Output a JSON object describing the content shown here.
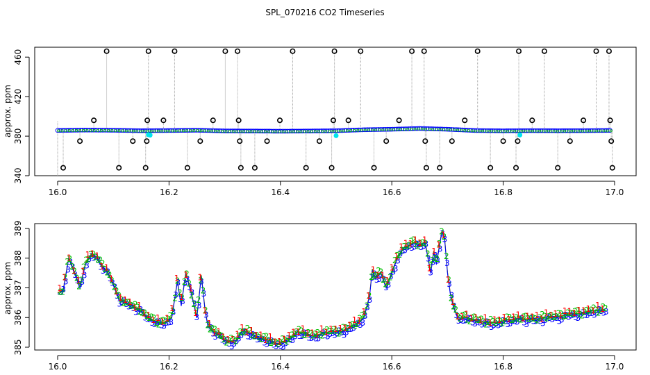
{
  "title": "SPL_070216  CO2 Timeseries",
  "colors": {
    "series_1": "#ff0000",
    "series_2": "#00c000",
    "series_3": "#0000ff",
    "cyan": "#00e5ee",
    "gray": "#a0a0a0",
    "black": "#000000"
  },
  "chart_data": [
    {
      "type": "scatter",
      "panel": "top",
      "ylabel": "approx. ppm",
      "xlim": [
        16.0,
        17.0
      ],
      "ylim": [
        340,
        470
      ],
      "x_ticks": [
        16.0,
        16.2,
        16.4,
        16.6,
        16.8,
        17.0
      ],
      "x_tick_labels": [
        "16.0",
        "16.2",
        "16.4",
        "16.6",
        "16.8",
        "17.0"
      ],
      "y_ticks": [
        340,
        380,
        420,
        460
      ],
      "y_tick_labels": [
        "340",
        "380",
        "420",
        "460"
      ],
      "baseline": [
        [
          16.0,
          385.8
        ],
        [
          16.05,
          386.2
        ],
        [
          16.1,
          386.0
        ],
        [
          16.15,
          385.5
        ],
        [
          16.2,
          385.7
        ],
        [
          16.25,
          386.0
        ],
        [
          16.3,
          385.3
        ],
        [
          16.35,
          385.2
        ],
        [
          16.4,
          385.0
        ],
        [
          16.45,
          385.2
        ],
        [
          16.5,
          385.5
        ],
        [
          16.55,
          386.5
        ],
        [
          16.6,
          387.0
        ],
        [
          16.65,
          387.8
        ],
        [
          16.7,
          387.0
        ],
        [
          16.75,
          385.7
        ],
        [
          16.8,
          385.4
        ],
        [
          16.85,
          385.6
        ],
        [
          16.9,
          385.5
        ],
        [
          16.95,
          385.6
        ],
        [
          16.99,
          385.8
        ]
      ],
      "cyan_points": [
        [
          16.163,
          381.5
        ],
        [
          16.166,
          381.0
        ],
        [
          16.5,
          380.5
        ],
        [
          16.83,
          381.2
        ]
      ],
      "spikes": [
        {
          "x": 16.01,
          "y": 348
        },
        {
          "x": 16.04,
          "y": 375
        },
        {
          "x": 16.065,
          "y": 396
        },
        {
          "x": 16.088,
          "y": 466
        },
        {
          "x": 16.11,
          "y": 348
        },
        {
          "x": 16.135,
          "y": 375
        },
        {
          "x": 16.158,
          "y": 348
        },
        {
          "x": 16.16,
          "y": 375
        },
        {
          "x": 16.161,
          "y": 396
        },
        {
          "x": 16.163,
          "y": 466
        },
        {
          "x": 16.19,
          "y": 396
        },
        {
          "x": 16.21,
          "y": 466
        },
        {
          "x": 16.233,
          "y": 348
        },
        {
          "x": 16.256,
          "y": 375
        },
        {
          "x": 16.279,
          "y": 396
        },
        {
          "x": 16.301,
          "y": 466
        },
        {
          "x": 16.323,
          "y": 466
        },
        {
          "x": 16.325,
          "y": 396
        },
        {
          "x": 16.327,
          "y": 375
        },
        {
          "x": 16.329,
          "y": 348
        },
        {
          "x": 16.354,
          "y": 348
        },
        {
          "x": 16.376,
          "y": 375
        },
        {
          "x": 16.399,
          "y": 396
        },
        {
          "x": 16.422,
          "y": 466
        },
        {
          "x": 16.446,
          "y": 348
        },
        {
          "x": 16.47,
          "y": 375
        },
        {
          "x": 16.492,
          "y": 348
        },
        {
          "x": 16.495,
          "y": 396
        },
        {
          "x": 16.497,
          "y": 466
        },
        {
          "x": 16.522,
          "y": 396
        },
        {
          "x": 16.544,
          "y": 466
        },
        {
          "x": 16.568,
          "y": 348
        },
        {
          "x": 16.59,
          "y": 375
        },
        {
          "x": 16.613,
          "y": 396
        },
        {
          "x": 16.636,
          "y": 466
        },
        {
          "x": 16.658,
          "y": 466
        },
        {
          "x": 16.66,
          "y": 375
        },
        {
          "x": 16.662,
          "y": 348
        },
        {
          "x": 16.686,
          "y": 348
        },
        {
          "x": 16.708,
          "y": 375
        },
        {
          "x": 16.731,
          "y": 396
        },
        {
          "x": 16.754,
          "y": 466
        },
        {
          "x": 16.777,
          "y": 348
        },
        {
          "x": 16.8,
          "y": 375
        },
        {
          "x": 16.823,
          "y": 348
        },
        {
          "x": 16.826,
          "y": 375
        },
        {
          "x": 16.828,
          "y": 466
        },
        {
          "x": 16.852,
          "y": 396
        },
        {
          "x": 16.874,
          "y": 466
        },
        {
          "x": 16.898,
          "y": 348
        },
        {
          "x": 16.92,
          "y": 375
        },
        {
          "x": 16.944,
          "y": 396
        },
        {
          "x": 16.967,
          "y": 466
        },
        {
          "x": 16.99,
          "y": 466
        },
        {
          "x": 16.992,
          "y": 396
        },
        {
          "x": 16.994,
          "y": 375
        },
        {
          "x": 16.996,
          "y": 348
        }
      ]
    },
    {
      "type": "line",
      "panel": "bottom",
      "ylabel": "approx. ppm",
      "xlim": [
        16.0,
        17.0
      ],
      "ylim": [
        385,
        389
      ],
      "x_ticks": [
        16.0,
        16.2,
        16.4,
        16.6,
        16.8,
        17.0
      ],
      "x_tick_labels": [
        "16.0",
        "16.2",
        "16.4",
        "16.6",
        "16.8",
        "17.0"
      ],
      "y_ticks": [
        385,
        386,
        387,
        388,
        389
      ],
      "y_tick_labels": [
        "385",
        "386",
        "387",
        "388",
        "389"
      ],
      "series_labels": [
        "1",
        "2",
        "3"
      ],
      "profile": [
        [
          16.0,
          386.8
        ],
        [
          16.01,
          386.9
        ],
        [
          16.02,
          388.0
        ],
        [
          16.03,
          387.5
        ],
        [
          16.04,
          387.0
        ],
        [
          16.05,
          387.8
        ],
        [
          16.06,
          388.1
        ],
        [
          16.07,
          388.0
        ],
        [
          16.08,
          387.7
        ],
        [
          16.09,
          387.5
        ],
        [
          16.1,
          387.1
        ],
        [
          16.11,
          386.6
        ],
        [
          16.12,
          386.5
        ],
        [
          16.13,
          386.4
        ],
        [
          16.14,
          386.3
        ],
        [
          16.15,
          386.2
        ],
        [
          16.16,
          386.0
        ],
        [
          16.17,
          385.9
        ],
        [
          16.18,
          385.8
        ],
        [
          16.19,
          385.8
        ],
        [
          16.2,
          385.9
        ],
        [
          16.205,
          386.0
        ],
        [
          16.215,
          387.2
        ],
        [
          16.222,
          386.4
        ],
        [
          16.23,
          387.5
        ],
        [
          16.24,
          386.8
        ],
        [
          16.25,
          386.0
        ],
        [
          16.258,
          387.4
        ],
        [
          16.265,
          386.2
        ],
        [
          16.27,
          385.7
        ],
        [
          16.28,
          385.5
        ],
        [
          16.29,
          385.4
        ],
        [
          16.3,
          385.2
        ],
        [
          16.31,
          385.15
        ],
        [
          16.32,
          385.2
        ],
        [
          16.33,
          385.5
        ],
        [
          16.34,
          385.5
        ],
        [
          16.35,
          385.4
        ],
        [
          16.36,
          385.3
        ],
        [
          16.37,
          385.25
        ],
        [
          16.38,
          385.2
        ],
        [
          16.39,
          385.1
        ],
        [
          16.4,
          385.1
        ],
        [
          16.41,
          385.2
        ],
        [
          16.42,
          385.3
        ],
        [
          16.43,
          385.5
        ],
        [
          16.44,
          385.45
        ],
        [
          16.45,
          385.4
        ],
        [
          16.46,
          385.35
        ],
        [
          16.47,
          385.4
        ],
        [
          16.48,
          385.45
        ],
        [
          16.49,
          385.5
        ],
        [
          16.5,
          385.5
        ],
        [
          16.51,
          385.5
        ],
        [
          16.52,
          385.6
        ],
        [
          16.53,
          385.7
        ],
        [
          16.54,
          385.8
        ],
        [
          16.55,
          386.0
        ],
        [
          16.56,
          386.7
        ],
        [
          16.565,
          387.6
        ],
        [
          16.57,
          387.3
        ],
        [
          16.58,
          387.5
        ],
        [
          16.59,
          387.0
        ],
        [
          16.6,
          387.5
        ],
        [
          16.61,
          388.0
        ],
        [
          16.62,
          388.3
        ],
        [
          16.63,
          388.4
        ],
        [
          16.64,
          388.5
        ],
        [
          16.65,
          388.4
        ],
        [
          16.66,
          388.5
        ],
        [
          16.67,
          387.5
        ],
        [
          16.675,
          388.2
        ],
        [
          16.68,
          387.8
        ],
        [
          16.69,
          388.9
        ],
        [
          16.695,
          388.6
        ],
        [
          16.7,
          387.5
        ],
        [
          16.705,
          386.8
        ],
        [
          16.71,
          386.4
        ],
        [
          16.72,
          385.9
        ],
        [
          16.73,
          386.0
        ],
        [
          16.74,
          385.9
        ],
        [
          16.75,
          385.9
        ],
        [
          16.76,
          385.85
        ],
        [
          16.77,
          385.8
        ],
        [
          16.78,
          385.8
        ],
        [
          16.79,
          385.8
        ],
        [
          16.8,
          385.85
        ],
        [
          16.81,
          385.9
        ],
        [
          16.82,
          385.9
        ],
        [
          16.83,
          385.95
        ],
        [
          16.84,
          385.9
        ],
        [
          16.85,
          385.95
        ],
        [
          16.86,
          385.9
        ],
        [
          16.87,
          385.95
        ],
        [
          16.88,
          386.0
        ],
        [
          16.89,
          386.0
        ],
        [
          16.9,
          386.0
        ],
        [
          16.91,
          386.05
        ],
        [
          16.92,
          386.1
        ],
        [
          16.93,
          386.1
        ],
        [
          16.94,
          386.1
        ],
        [
          16.95,
          386.15
        ],
        [
          16.96,
          386.2
        ],
        [
          16.97,
          386.2
        ],
        [
          16.98,
          386.25
        ]
      ]
    }
  ]
}
